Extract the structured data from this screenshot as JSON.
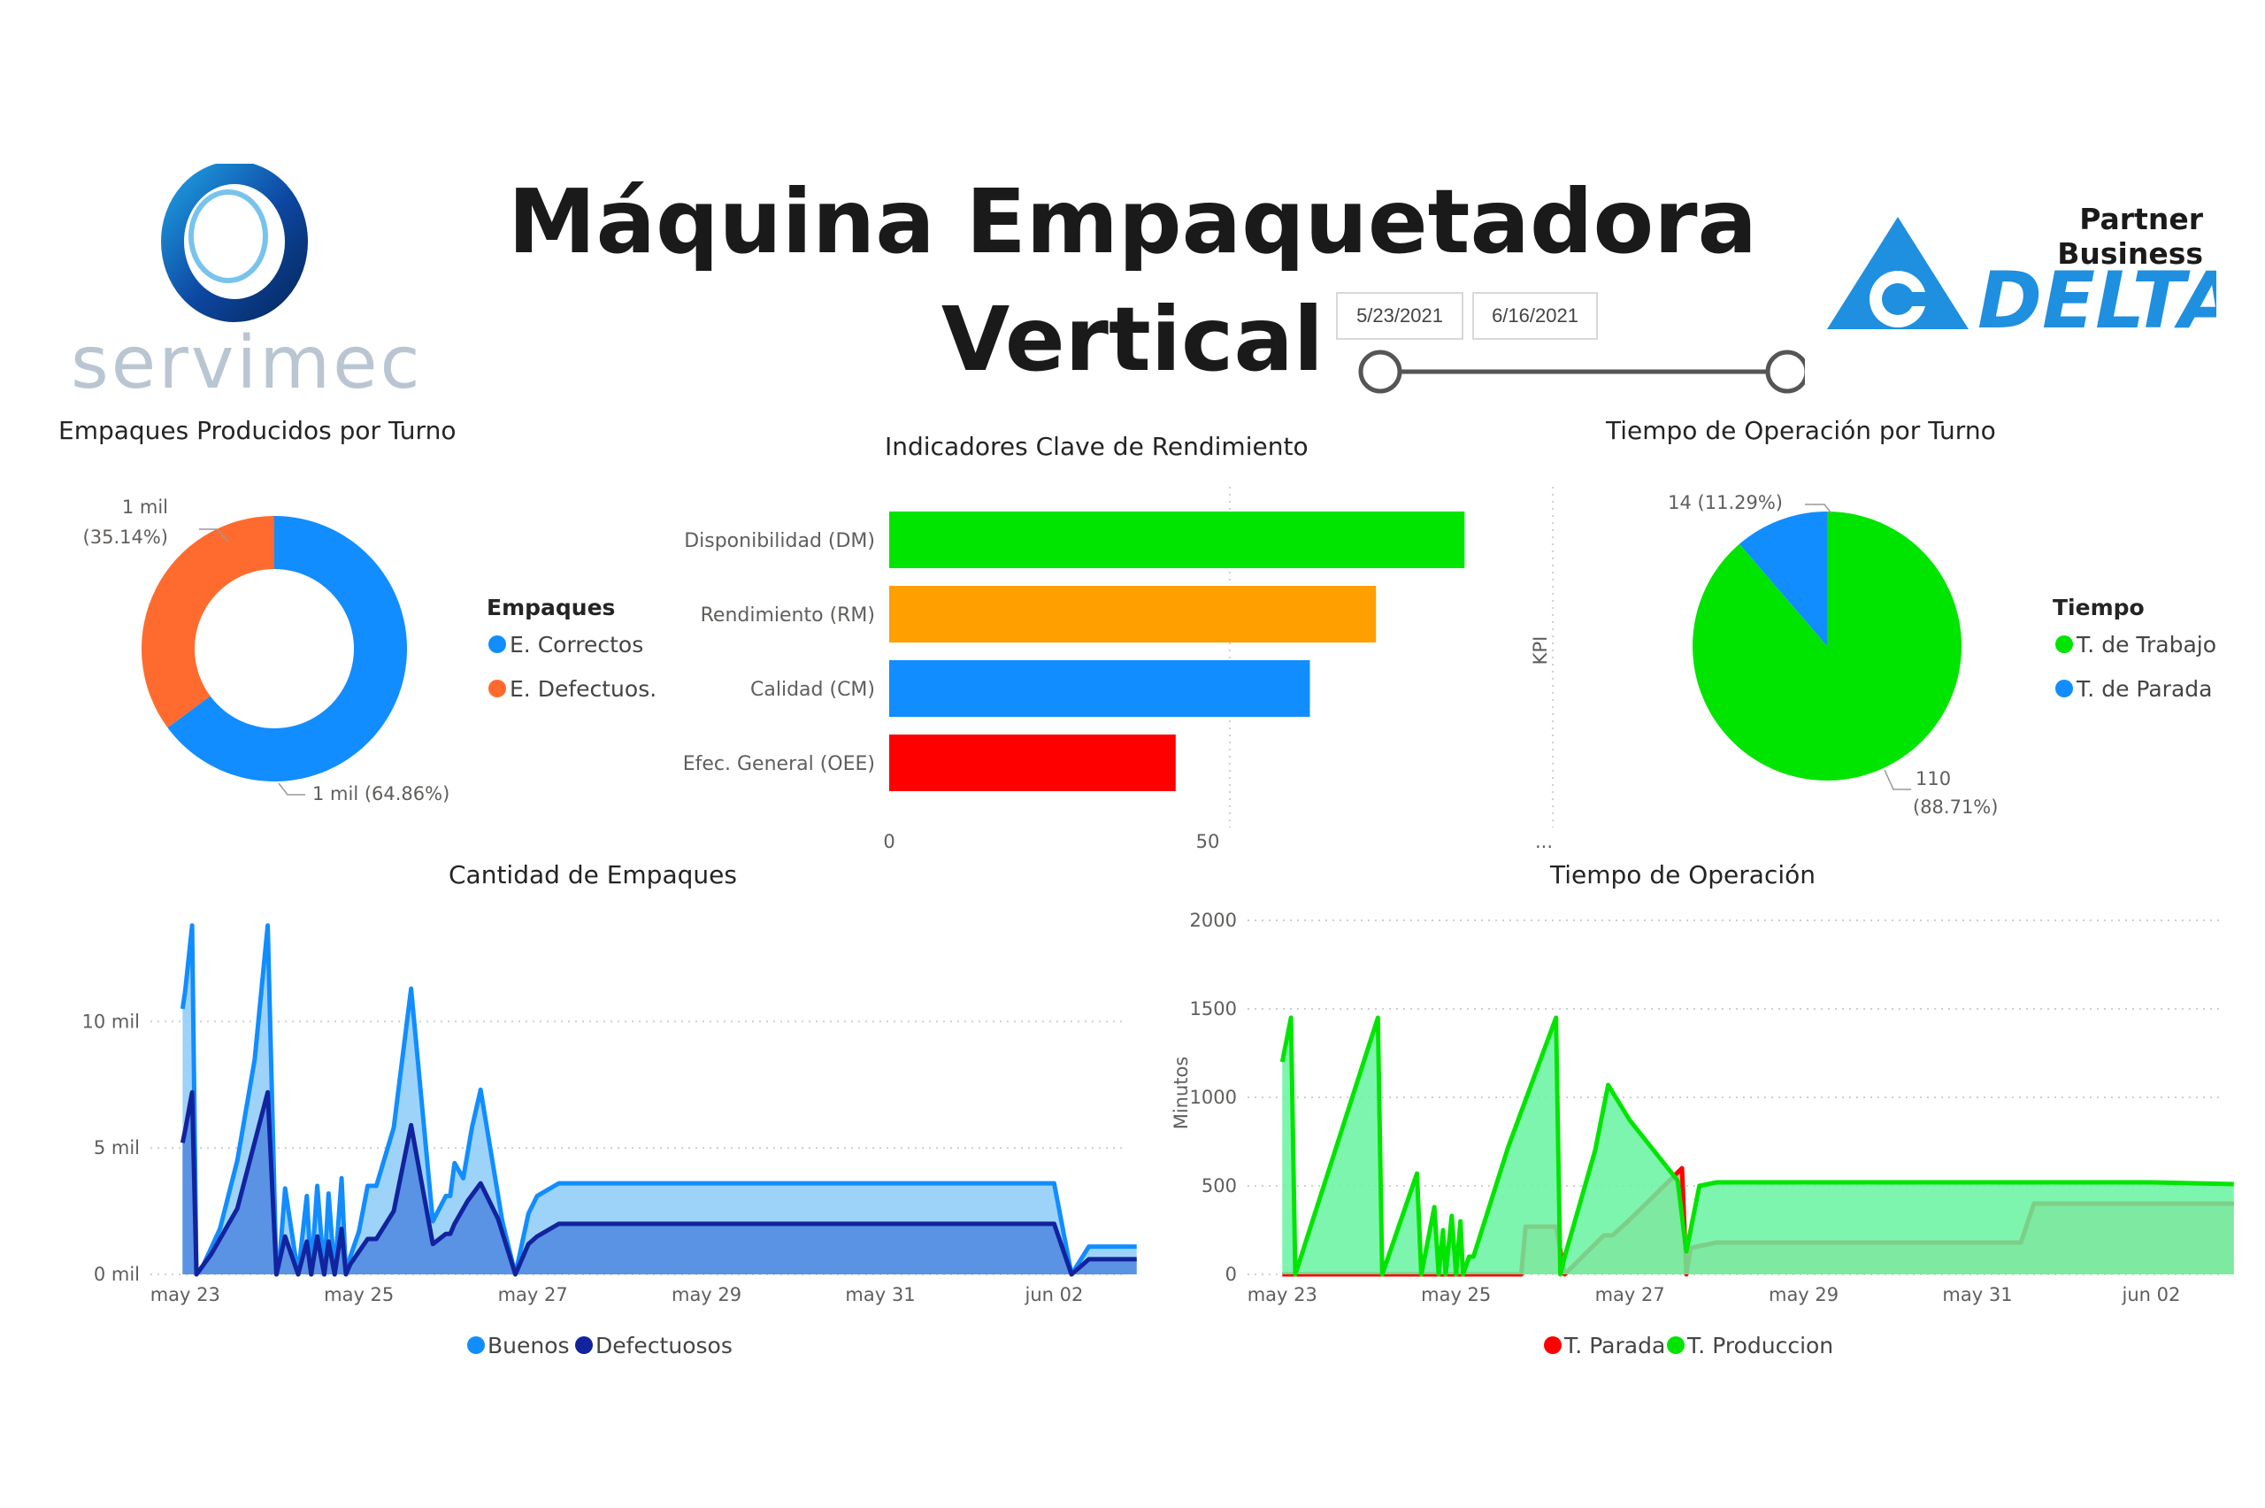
{
  "header": {
    "title_line1": "Máquina Empaquetadora",
    "title_line2": "Vertical",
    "brand_left": "servimec",
    "partner_label": "Partner Business",
    "brand_right": "DELTA",
    "date_start": "5/23/2021",
    "date_end": "6/16/2021",
    "date_slider_start": 0,
    "date_slider_end": 1
  },
  "colors": {
    "blue": "#118dff",
    "orange": "#ff6b2e",
    "green": "#00e500",
    "amber": "#ff9f00",
    "red": "#ff0000",
    "dark_blue": "#12239e",
    "light_blue": "#8ccbf7",
    "mid_blue": "#4f86e0",
    "light_green": "#66f3a0",
    "salmon": "#ffa095",
    "brand_blue": "#1f8fe0"
  },
  "chart_data": [
    {
      "id": "donut",
      "type": "pie",
      "title": "Empaques Producidos por Turno",
      "legend_title": "Empaques",
      "legend_position": "right",
      "slices": [
        {
          "name": "E. Correctos",
          "value": 64.86,
          "label_top": "1 mil (64.86%)",
          "label_bottom": ""
        },
        {
          "name": "E. Defectuos.",
          "value": 35.14,
          "label_top": "1 mil",
          "label_bottom": "(35.14%)"
        }
      ]
    },
    {
      "id": "kpi",
      "type": "bar",
      "orientation": "horizontal",
      "title": "Indicadores Clave de Rendimiento",
      "ylabel": "KPI",
      "categories": [
        "Disponibilidad (DM)",
        "Rendimiento (RM)",
        "Calidad (CM)",
        "Efec. General (OEE)"
      ],
      "values": [
        89,
        76,
        65,
        44
      ],
      "xlim": [
        0,
        100
      ],
      "ticks": [
        {
          "v": 0,
          "label": "0"
        },
        {
          "v": 50,
          "label": "50"
        }
      ],
      "ellipsis": "..."
    },
    {
      "id": "pie",
      "type": "pie",
      "title": "Tiempo de Operación por Turno",
      "legend_title": "Tiempo",
      "legend_position": "right",
      "slices": [
        {
          "name": "T. de Trabajo",
          "value": 110,
          "label_top": "110",
          "label_bottom": "(88.71%)"
        },
        {
          "name": "T. de Parada",
          "value": 14,
          "label_top": "14 (11.29%)",
          "label_bottom": ""
        }
      ]
    },
    {
      "id": "area1",
      "type": "area",
      "title": "Cantidad de Empaques",
      "xlabel": "",
      "ylabel": "",
      "ylim": [
        0,
        14000
      ],
      "yticks": [
        {
          "v": 0,
          "label": "0 mil"
        },
        {
          "v": 5000,
          "label": "5 mil"
        },
        {
          "v": 10000,
          "label": "10 mil"
        }
      ],
      "xticks": [
        {
          "day": 0,
          "label": "may 23"
        },
        {
          "day": 2,
          "label": "may 25"
        },
        {
          "day": 4,
          "label": "may 27"
        },
        {
          "day": 6,
          "label": "may 29"
        },
        {
          "day": 8,
          "label": "may 31"
        },
        {
          "day": 10,
          "label": "jun 02"
        }
      ],
      "xlim": [
        -0.4,
        10.8
      ],
      "grid": true,
      "legend_position": "bottom",
      "series": [
        {
          "name": "Buenos",
          "x": [
            -0.03,
            0.0,
            0.08,
            0.13,
            0.2,
            0.4,
            0.6,
            0.8,
            0.95,
            1.05,
            1.08,
            1.15,
            1.3,
            1.4,
            1.45,
            1.52,
            1.6,
            1.65,
            1.72,
            1.8,
            1.85,
            1.9,
            2.0,
            2.1,
            2.2,
            2.4,
            2.6,
            2.85,
            3.0,
            3.05,
            3.1,
            3.2,
            3.3,
            3.4,
            3.65,
            3.8,
            3.95,
            4.05,
            4.3,
            4.4,
            4.48,
            4.55,
            4.65,
            10.0,
            10.2,
            10.4,
            10.95
          ],
          "y": [
            10500,
            11200,
            13800,
            0,
            300,
            1800,
            4500,
            8500,
            13800,
            0,
            300,
            3400,
            0,
            3100,
            0,
            3500,
            0,
            3200,
            0,
            3800,
            0,
            700,
            1700,
            3500,
            3500,
            5800,
            11300,
            2100,
            3100,
            3100,
            4400,
            3800,
            5800,
            7300,
            2100,
            0,
            2400,
            3100,
            3600,
            3600,
            3600,
            3600,
            3600,
            3600,
            0,
            1100,
            1100
          ],
          "fill": "#8ccbf7",
          "stroke": "#118dff"
        },
        {
          "name": "Defectuosos",
          "x": [
            -0.03,
            0.0,
            0.08,
            0.13,
            0.3,
            0.6,
            0.95,
            1.05,
            1.15,
            1.3,
            1.4,
            1.45,
            1.52,
            1.6,
            1.65,
            1.72,
            1.8,
            1.85,
            1.9,
            2.0,
            2.1,
            2.2,
            2.4,
            2.6,
            2.85,
            3.0,
            3.05,
            3.1,
            3.25,
            3.4,
            3.6,
            3.8,
            3.95,
            4.05,
            4.3,
            4.65,
            10.0,
            10.2,
            10.4,
            10.95
          ],
          "y": [
            5200,
            5700,
            7200,
            0,
            800,
            2600,
            7200,
            0,
            1500,
            0,
            1300,
            0,
            1500,
            0,
            1300,
            0,
            1800,
            0,
            400,
            900,
            1400,
            1400,
            2500,
            5900,
            1200,
            1600,
            1600,
            2000,
            2900,
            3600,
            2200,
            0,
            1200,
            1500,
            2000,
            2000,
            2000,
            0,
            600,
            600
          ],
          "fill": "#4f86e0",
          "stroke": "#12239e"
        }
      ]
    },
    {
      "id": "area2",
      "type": "area",
      "title": "Tiempo de Operación",
      "ylabel": "Minutos",
      "xlabel": "",
      "ylim": [
        0,
        2000
      ],
      "yticks": [
        {
          "v": 0,
          "label": "0"
        },
        {
          "v": 500,
          "label": "500"
        },
        {
          "v": 1000,
          "label": "1000"
        },
        {
          "v": 1500,
          "label": "1500"
        },
        {
          "v": 2000,
          "label": "2000"
        }
      ],
      "xticks": [
        {
          "day": 0,
          "label": "may 23"
        },
        {
          "day": 2,
          "label": "may 25"
        },
        {
          "day": 4,
          "label": "may 27"
        },
        {
          "day": 6,
          "label": "may 29"
        },
        {
          "day": 8,
          "label": "may 31"
        },
        {
          "day": 10,
          "label": "jun 02"
        }
      ],
      "xlim": [
        -0.4,
        10.8
      ],
      "grid": true,
      "legend_position": "bottom",
      "series": [
        {
          "name": "T. Parada",
          "x": [
            0.0,
            2.75,
            2.8,
            3.15,
            3.25,
            3.7,
            3.8,
            4.0,
            4.6,
            4.65,
            4.7,
            5.0,
            8.5,
            8.65,
            10.0,
            10.95
          ],
          "y": [
            0,
            0,
            270,
            270,
            0,
            220,
            220,
            310,
            600,
            0,
            150,
            180,
            180,
            400,
            400,
            400
          ],
          "fill": "#ffa095",
          "stroke": "#ff0000"
        },
        {
          "name": "T. Produccion",
          "x": [
            0.0,
            0.1,
            0.15,
            1.1,
            1.15,
            1.55,
            1.6,
            1.75,
            1.8,
            1.85,
            1.88,
            1.95,
            2.0,
            2.05,
            2.08,
            2.15,
            2.2,
            2.6,
            3.15,
            3.2,
            3.25,
            3.6,
            3.75,
            4.0,
            4.55,
            4.65,
            4.8,
            5.0,
            10.0,
            10.95
          ],
          "y": [
            1200,
            1450,
            0,
            1450,
            0,
            570,
            0,
            380,
            0,
            250,
            0,
            330,
            0,
            300,
            0,
            100,
            100,
            720,
            1450,
            0,
            100,
            700,
            1070,
            870,
            530,
            130,
            500,
            520,
            520,
            510
          ],
          "fill": "#66f3a0",
          "stroke": "#00e500"
        }
      ]
    }
  ]
}
